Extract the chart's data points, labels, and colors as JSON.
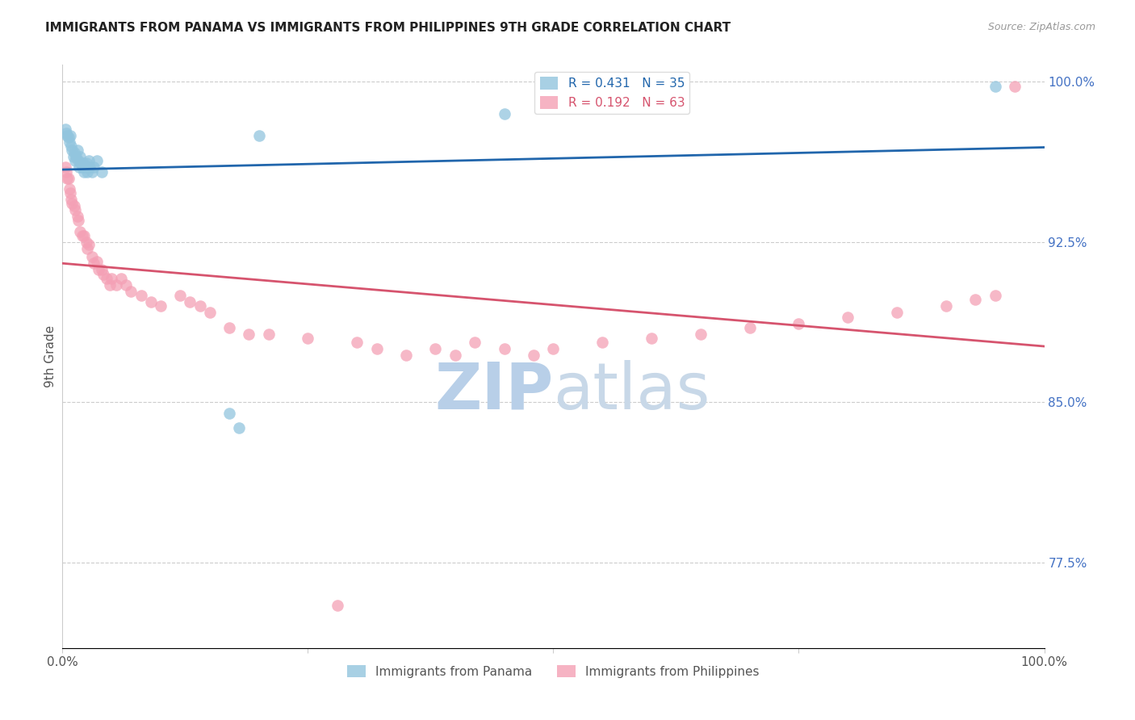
{
  "title": "IMMIGRANTS FROM PANAMA VS IMMIGRANTS FROM PHILIPPINES 9TH GRADE CORRELATION CHART",
  "source_text": "Source: ZipAtlas.com",
  "ylabel": "9th Grade",
  "xlim": [
    0,
    1.0
  ],
  "ylim": [
    0.735,
    1.008
  ],
  "yticks": [
    0.775,
    0.85,
    0.925,
    1.0
  ],
  "ytick_labels": [
    "77.5%",
    "85.0%",
    "92.5%",
    "100.0%"
  ],
  "panama_color": "#92c5de",
  "philippines_color": "#f4a0b5",
  "panama_line_color": "#2166ac",
  "philippines_line_color": "#d6546e",
  "right_axis_color": "#4472c4",
  "watermark_text": "ZIPatlas",
  "watermark_color": "#d0e4f7",
  "panama_x": [
    0.003,
    0.004,
    0.005,
    0.006,
    0.007,
    0.008,
    0.009,
    0.01,
    0.011,
    0.012,
    0.013,
    0.014,
    0.015,
    0.016,
    0.017,
    0.018,
    0.019,
    0.02,
    0.021,
    0.022,
    0.023,
    0.024,
    0.025,
    0.026,
    0.027,
    0.028,
    0.03,
    0.032,
    0.035,
    0.04,
    0.17,
    0.18,
    0.2,
    0.45,
    0.95
  ],
  "panama_y": [
    0.978,
    0.976,
    0.975,
    0.974,
    0.972,
    0.975,
    0.97,
    0.968,
    0.965,
    0.967,
    0.963,
    0.965,
    0.968,
    0.963,
    0.96,
    0.965,
    0.962,
    0.96,
    0.962,
    0.958,
    0.96,
    0.962,
    0.958,
    0.96,
    0.963,
    0.96,
    0.958,
    0.96,
    0.963,
    0.958,
    0.845,
    0.838,
    0.975,
    0.985,
    0.998
  ],
  "philippines_x": [
    0.003,
    0.004,
    0.005,
    0.006,
    0.007,
    0.008,
    0.009,
    0.01,
    0.012,
    0.013,
    0.015,
    0.016,
    0.018,
    0.02,
    0.022,
    0.024,
    0.025,
    0.027,
    0.03,
    0.032,
    0.035,
    0.037,
    0.04,
    0.042,
    0.045,
    0.048,
    0.05,
    0.055,
    0.06,
    0.065,
    0.07,
    0.08,
    0.09,
    0.1,
    0.12,
    0.13,
    0.14,
    0.15,
    0.17,
    0.19,
    0.21,
    0.25,
    0.28,
    0.3,
    0.32,
    0.35,
    0.38,
    0.4,
    0.42,
    0.45,
    0.48,
    0.5,
    0.55,
    0.6,
    0.65,
    0.7,
    0.75,
    0.8,
    0.85,
    0.9,
    0.93,
    0.95,
    0.97
  ],
  "philippines_y": [
    0.96,
    0.958,
    0.955,
    0.955,
    0.95,
    0.948,
    0.945,
    0.943,
    0.942,
    0.94,
    0.937,
    0.935,
    0.93,
    0.928,
    0.928,
    0.925,
    0.922,
    0.924,
    0.918,
    0.915,
    0.916,
    0.912,
    0.912,
    0.91,
    0.908,
    0.905,
    0.908,
    0.905,
    0.908,
    0.905,
    0.902,
    0.9,
    0.897,
    0.895,
    0.9,
    0.897,
    0.895,
    0.892,
    0.885,
    0.882,
    0.882,
    0.88,
    0.755,
    0.878,
    0.875,
    0.872,
    0.875,
    0.872,
    0.878,
    0.875,
    0.872,
    0.875,
    0.878,
    0.88,
    0.882,
    0.885,
    0.887,
    0.89,
    0.892,
    0.895,
    0.898,
    0.9,
    0.998
  ]
}
